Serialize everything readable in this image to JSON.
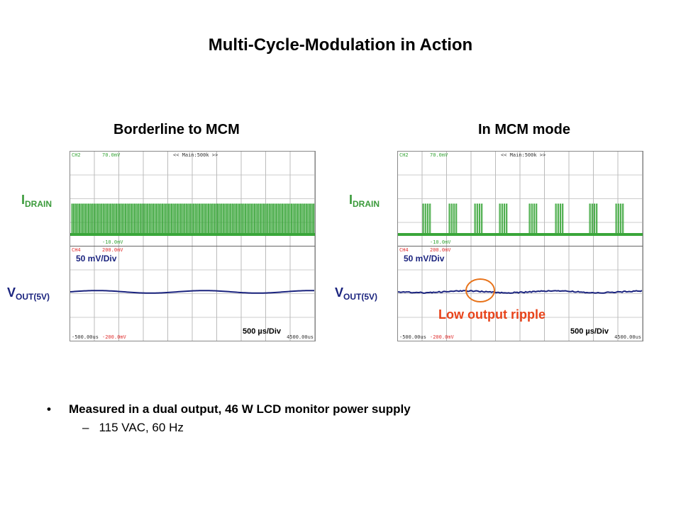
{
  "title": "Multi-Cycle-Modulation in Action",
  "scopes": [
    {
      "heading": "Borderline to MCM",
      "ch2": "CH2",
      "ch2_top": "70.0mV",
      "ch2_bottom": "-10.0mV",
      "timebase": "<< Main:500k >>",
      "ch4": "CH4",
      "ch4_top": "200.0mV",
      "ch4_bottom": "-200.0mV",
      "t_start": "-500.00us",
      "t_end": "4500.00us",
      "v_div": "50 mV/Div",
      "t_div": "500 µs/Div",
      "mode": "continuous"
    },
    {
      "heading": "In MCM mode",
      "ch2": "CH2",
      "ch2_top": "70.0mV",
      "ch2_bottom": "-10.0mV",
      "timebase": "<< Main:500k >>",
      "ch4": "CH4",
      "ch4_top": "200.0mV",
      "ch4_bottom": "-200.0mV",
      "t_start": "-500.00us",
      "t_end": "4500.00us",
      "v_div": "50 mV/Div",
      "t_div": "500 µs/Div",
      "mode": "burst"
    }
  ],
  "labels": {
    "idrain_main": "I",
    "idrain_sub": "DRAIN",
    "vout_main": "V",
    "vout_sub": "OUT(5V)"
  },
  "annotation": "Low output ripple",
  "bullets": {
    "symbol": "•",
    "text": "Measured in a dual output, 46 W LCD monitor power supply",
    "dash": "–",
    "subtext": "115 VAC,  60 Hz"
  },
  "colors": {
    "drain": "#3aa63a",
    "vout": "#1a237e",
    "accent": "#e8431a"
  }
}
